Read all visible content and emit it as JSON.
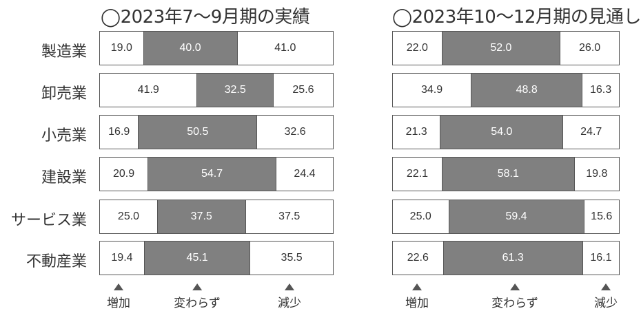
{
  "chart_data": [
    {
      "type": "bar",
      "stacked": true,
      "orientation": "horizontal",
      "title": "◯2023年7～9月期の実績",
      "categories": [
        "製造業",
        "卸売業",
        "小売業",
        "建設業",
        "サービス業",
        "不動産業"
      ],
      "series": [
        {
          "name": "増加",
          "values": [
            19.0,
            41.9,
            16.9,
            20.9,
            25.0,
            19.4
          ]
        },
        {
          "name": "変わらず",
          "values": [
            40.0,
            32.5,
            50.5,
            54.7,
            37.5,
            45.1
          ]
        },
        {
          "name": "減少",
          "values": [
            41.0,
            25.6,
            32.6,
            24.4,
            37.5,
            35.5
          ]
        }
      ],
      "xlim": [
        0,
        100
      ],
      "grid": false,
      "legend": "bottom"
    },
    {
      "type": "bar",
      "stacked": true,
      "orientation": "horizontal",
      "title": "◯2023年10～12月期の見通し",
      "categories": [
        "製造業",
        "卸売業",
        "小売業",
        "建設業",
        "サービス業",
        "不動産業"
      ],
      "series": [
        {
          "name": "増加",
          "values": [
            22.0,
            34.9,
            21.3,
            22.1,
            25.0,
            22.6
          ]
        },
        {
          "name": "変わらず",
          "values": [
            52.0,
            48.8,
            54.0,
            58.1,
            59.4,
            61.3
          ]
        },
        {
          "name": "減少",
          "values": [
            26.0,
            16.3,
            24.7,
            19.8,
            15.6,
            16.1
          ]
        }
      ],
      "xlim": [
        0,
        100
      ],
      "grid": false,
      "legend": "bottom"
    }
  ],
  "colors": {
    "increase": "#ffffff",
    "same": "#808080",
    "decrease": "#ffffff",
    "border": "#555555"
  },
  "legend_icon": "up-triangle"
}
